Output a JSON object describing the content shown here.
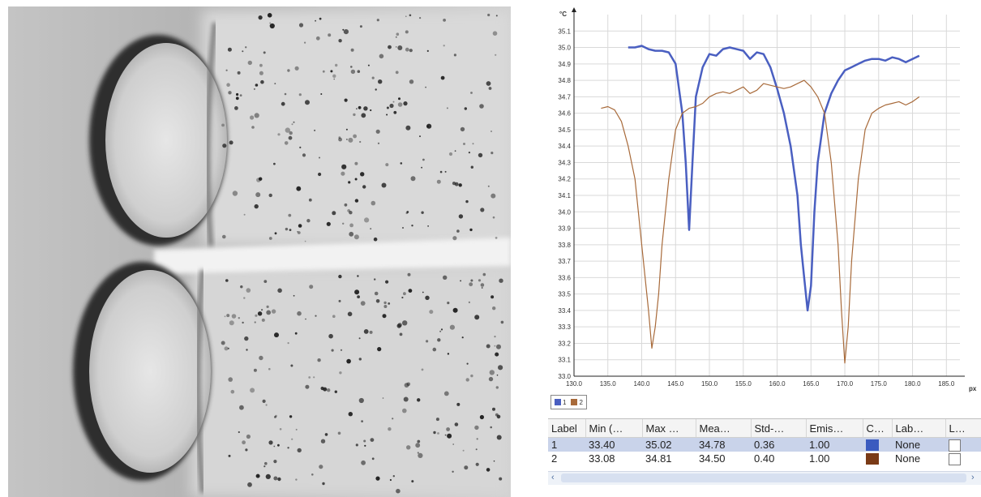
{
  "thermogram": {
    "icon": "thermal-image-icon"
  },
  "chart_data": {
    "type": "line",
    "x_unit": "px",
    "y_unit": "°C",
    "xlim": [
      130,
      187
    ],
    "ylim": [
      33.0,
      35.2
    ],
    "x_ticks": [
      "130.0",
      "135.0",
      "140.0",
      "145.0",
      "150.0",
      "155.0",
      "160.0",
      "165.0",
      "170.0",
      "175.0",
      "180.0",
      "185.0"
    ],
    "y_ticks": [
      "33.0",
      "33.1",
      "33.2",
      "33.3",
      "33.4",
      "33.5",
      "33.6",
      "33.7",
      "33.8",
      "33.9",
      "34.0",
      "34.1",
      "34.2",
      "34.3",
      "34.4",
      "34.5",
      "34.6",
      "34.7",
      "34.8",
      "34.9",
      "35.0",
      "35.1"
    ],
    "grid": true,
    "legend_position": "bottom-left",
    "series": [
      {
        "name": "1",
        "color": "#4a5fc1",
        "x": [
          138,
          139,
          140,
          141,
          142,
          143,
          144,
          145,
          146,
          146.5,
          147,
          147.5,
          148,
          149,
          150,
          151,
          152,
          153,
          154,
          155,
          156,
          157,
          158,
          159,
          160,
          161,
          162,
          163,
          163.5,
          164,
          164.5,
          165,
          165.5,
          166,
          167,
          168,
          169,
          170,
          171,
          172,
          173,
          174,
          175,
          176,
          177,
          178,
          179,
          180,
          181
        ],
        "y": [
          35.0,
          35.0,
          35.01,
          34.99,
          34.98,
          34.98,
          34.97,
          34.9,
          34.6,
          34.3,
          33.89,
          34.3,
          34.7,
          34.88,
          34.96,
          34.95,
          34.99,
          35.0,
          34.99,
          34.98,
          34.93,
          34.97,
          34.96,
          34.88,
          34.75,
          34.6,
          34.4,
          34.1,
          33.8,
          33.6,
          33.4,
          33.55,
          34.0,
          34.3,
          34.6,
          34.72,
          34.8,
          34.86,
          34.88,
          34.9,
          34.92,
          34.93,
          34.93,
          34.92,
          34.94,
          34.93,
          34.91,
          34.93,
          34.95
        ]
      },
      {
        "name": "2",
        "color": "#a86a3a",
        "x": [
          134,
          135,
          136,
          137,
          138,
          139,
          140,
          141,
          141.5,
          142,
          142.5,
          143,
          144,
          145,
          146,
          147,
          148,
          149,
          150,
          151,
          152,
          153,
          154,
          155,
          156,
          157,
          158,
          159,
          160,
          161,
          162,
          163,
          164,
          165,
          166,
          167,
          168,
          169,
          169.5,
          170,
          170.5,
          171,
          172,
          173,
          174,
          175,
          176,
          177,
          178,
          179,
          180,
          181
        ],
        "y": [
          34.63,
          34.64,
          34.62,
          34.55,
          34.4,
          34.2,
          33.8,
          33.4,
          33.17,
          33.3,
          33.5,
          33.8,
          34.2,
          34.5,
          34.6,
          34.63,
          34.64,
          34.66,
          34.7,
          34.72,
          34.73,
          34.72,
          34.74,
          34.76,
          34.72,
          34.74,
          34.78,
          34.77,
          34.76,
          34.75,
          34.76,
          34.78,
          34.8,
          34.76,
          34.7,
          34.6,
          34.3,
          33.8,
          33.4,
          33.08,
          33.3,
          33.7,
          34.2,
          34.5,
          34.6,
          34.63,
          34.65,
          34.66,
          34.67,
          34.65,
          34.67,
          34.7
        ]
      }
    ]
  },
  "stats": {
    "columns": [
      "Label",
      "Min (…",
      "Max …",
      "Mea…",
      "Std-…",
      "Emis…",
      "C…",
      "Lab…",
      "L…"
    ],
    "rows": [
      {
        "label": "1",
        "min": "33.40",
        "max": "35.02",
        "mean": "34.78",
        "std": "0.36",
        "emis": "1.00",
        "color": "#3b5bbf",
        "lab": "None",
        "selected": true
      },
      {
        "label": "2",
        "min": "33.08",
        "max": "34.81",
        "mean": "34.50",
        "std": "0.40",
        "emis": "1.00",
        "color": "#7a3a16",
        "lab": "None",
        "selected": false
      }
    ]
  },
  "scrollbar": {
    "left_arrow": "‹",
    "right_arrow": "›"
  }
}
